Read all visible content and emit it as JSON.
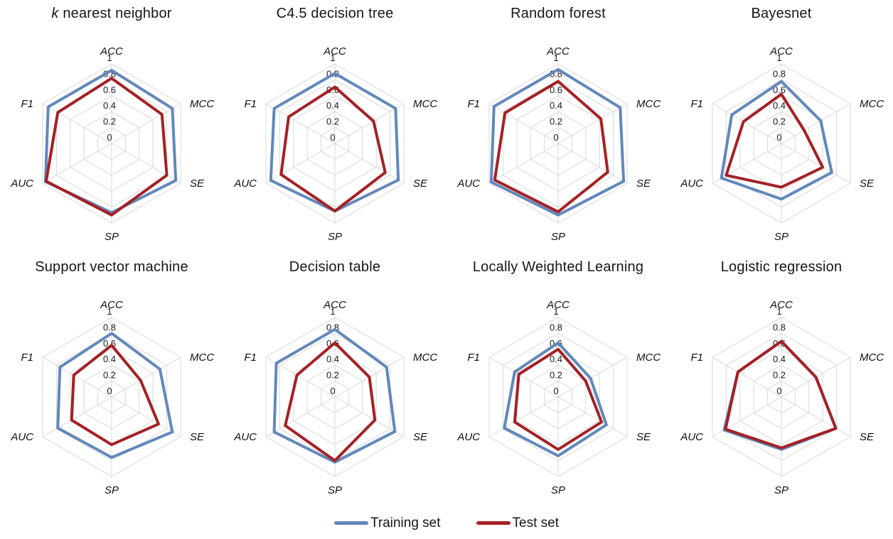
{
  "legend": {
    "items": [
      {
        "label": "Training set",
        "color": "#6288bb"
      },
      {
        "label": "Test set",
        "color": "#a42125"
      }
    ]
  },
  "grid_color": "#d9d9d9",
  "chart_data": [
    {
      "type": "radar",
      "title_prefix": "k",
      "title": " nearest neighbor",
      "axes": [
        "ACC",
        "MCC",
        "SE",
        "SP",
        "AUC",
        "F1"
      ],
      "ticks": [
        0,
        0.2,
        0.4,
        0.6,
        0.8,
        1
      ],
      "tick_labels": [
        "0",
        "0.2",
        "0.4",
        "0.6",
        "0.8",
        "1"
      ],
      "rlim": [
        0,
        1
      ],
      "series": [
        {
          "name": "Training set",
          "color": "#6288bb",
          "values": [
            0.92,
            0.88,
            0.93,
            0.87,
            0.96,
            0.92
          ]
        },
        {
          "name": "Test set",
          "color": "#a42125",
          "values": [
            0.82,
            0.73,
            0.8,
            0.9,
            0.95,
            0.78
          ]
        }
      ]
    },
    {
      "type": "radar",
      "title_prefix": "",
      "title": "C4.5 decision tree",
      "axes": [
        "ACC",
        "MCC",
        "SE",
        "SP",
        "AUC",
        "F1"
      ],
      "ticks": [
        0,
        0.2,
        0.4,
        0.6,
        0.8,
        1
      ],
      "tick_labels": [
        "0",
        "0.2",
        "0.4",
        "0.6",
        "0.8",
        "1"
      ],
      "rlim": [
        0,
        1
      ],
      "series": [
        {
          "name": "Training set",
          "color": "#6288bb",
          "values": [
            0.88,
            0.88,
            0.92,
            0.85,
            0.93,
            0.88
          ]
        },
        {
          "name": "Test set",
          "color": "#a42125",
          "values": [
            0.71,
            0.56,
            0.73,
            0.85,
            0.78,
            0.67
          ]
        }
      ]
    },
    {
      "type": "radar",
      "title_prefix": "",
      "title": "Random forest",
      "axes": [
        "ACC",
        "MCC",
        "SE",
        "SP",
        "AUC",
        "F1"
      ],
      "ticks": [
        0,
        0.2,
        0.4,
        0.6,
        0.8,
        1
      ],
      "tick_labels": [
        "0",
        "0.2",
        "0.4",
        "0.6",
        "0.8",
        "1"
      ],
      "rlim": [
        0,
        1
      ],
      "series": [
        {
          "name": "Training set",
          "color": "#6288bb",
          "values": [
            0.93,
            0.9,
            0.95,
            0.9,
            0.97,
            0.93
          ]
        },
        {
          "name": "Test set",
          "color": "#a42125",
          "values": [
            0.78,
            0.62,
            0.72,
            0.86,
            0.92,
            0.77
          ]
        }
      ]
    },
    {
      "type": "radar",
      "title_prefix": "",
      "title": "Bayesnet",
      "axes": [
        "ACC",
        "MCC",
        "SE",
        "SP",
        "AUC",
        "F1"
      ],
      "ticks": [
        0,
        0.2,
        0.4,
        0.6,
        0.8,
        1
      ],
      "tick_labels": [
        "0",
        "0.2",
        "0.4",
        "0.6",
        "0.8",
        "1"
      ],
      "rlim": [
        0,
        1
      ],
      "series": [
        {
          "name": "Training set",
          "color": "#6288bb",
          "values": [
            0.78,
            0.57,
            0.73,
            0.7,
            0.87,
            0.72
          ]
        },
        {
          "name": "Test set",
          "color": "#a42125",
          "values": [
            0.62,
            0.33,
            0.6,
            0.55,
            0.8,
            0.55
          ]
        }
      ]
    },
    {
      "type": "radar",
      "title_prefix": "",
      "title": "Support vector machine",
      "axes": [
        "ACC",
        "MCC",
        "SE",
        "SP",
        "AUC",
        "F1"
      ],
      "ticks": [
        0,
        0.2,
        0.4,
        0.6,
        0.8,
        1
      ],
      "tick_labels": [
        "0",
        "0.2",
        "0.4",
        "0.6",
        "0.8",
        "1"
      ],
      "rlim": [
        0,
        1
      ],
      "series": [
        {
          "name": "Training set",
          "color": "#6288bb",
          "values": [
            0.8,
            0.7,
            0.88,
            0.76,
            0.78,
            0.75
          ]
        },
        {
          "name": "Test set",
          "color": "#a42125",
          "values": [
            0.65,
            0.42,
            0.68,
            0.6,
            0.58,
            0.55
          ]
        }
      ]
    },
    {
      "type": "radar",
      "title_prefix": "",
      "title": "Decision table",
      "axes": [
        "ACC",
        "MCC",
        "SE",
        "SP",
        "AUC",
        "F1"
      ],
      "ticks": [
        0,
        0.2,
        0.4,
        0.6,
        0.8,
        1
      ],
      "tick_labels": [
        "0",
        "0.2",
        "0.4",
        "0.6",
        "0.8",
        "1"
      ],
      "rlim": [
        0,
        1
      ],
      "series": [
        {
          "name": "Training set",
          "color": "#6288bb",
          "values": [
            0.85,
            0.75,
            0.87,
            0.82,
            0.88,
            0.85
          ]
        },
        {
          "name": "Test set",
          "color": "#a42125",
          "values": [
            0.68,
            0.5,
            0.58,
            0.8,
            0.72,
            0.55
          ]
        }
      ]
    },
    {
      "type": "radar",
      "title_prefix": "",
      "title": "Locally Weighted Learning",
      "axes": [
        "ACC",
        "MCC",
        "SE",
        "SP",
        "AUC",
        "F1"
      ],
      "ticks": [
        0,
        0.2,
        0.4,
        0.6,
        0.8,
        1
      ],
      "tick_labels": [
        "0",
        "0.2",
        "0.4",
        "0.6",
        "0.8",
        "1"
      ],
      "rlim": [
        0,
        1
      ],
      "series": [
        {
          "name": "Training set",
          "color": "#6288bb",
          "values": [
            0.68,
            0.47,
            0.7,
            0.74,
            0.78,
            0.63
          ]
        },
        {
          "name": "Test set",
          "color": "#a42125",
          "values": [
            0.6,
            0.4,
            0.63,
            0.66,
            0.63,
            0.57
          ]
        }
      ]
    },
    {
      "type": "radar",
      "title_prefix": "",
      "title": "Logistic regression",
      "axes": [
        "ACC",
        "MCC",
        "SE",
        "SP",
        "AUC",
        "F1"
      ],
      "ticks": [
        0,
        0.2,
        0.4,
        0.6,
        0.8,
        1
      ],
      "tick_labels": [
        "0",
        "0.2",
        "0.4",
        "0.6",
        "0.8",
        "1"
      ],
      "rlim": [
        0,
        1
      ],
      "series": [
        {
          "name": "Training set",
          "color": "#6288bb",
          "values": [
            0.7,
            0.5,
            0.79,
            0.66,
            0.83,
            0.63
          ]
        },
        {
          "name": "Test set",
          "color": "#a42125",
          "values": [
            0.7,
            0.5,
            0.79,
            0.64,
            0.81,
            0.63
          ]
        }
      ]
    }
  ]
}
